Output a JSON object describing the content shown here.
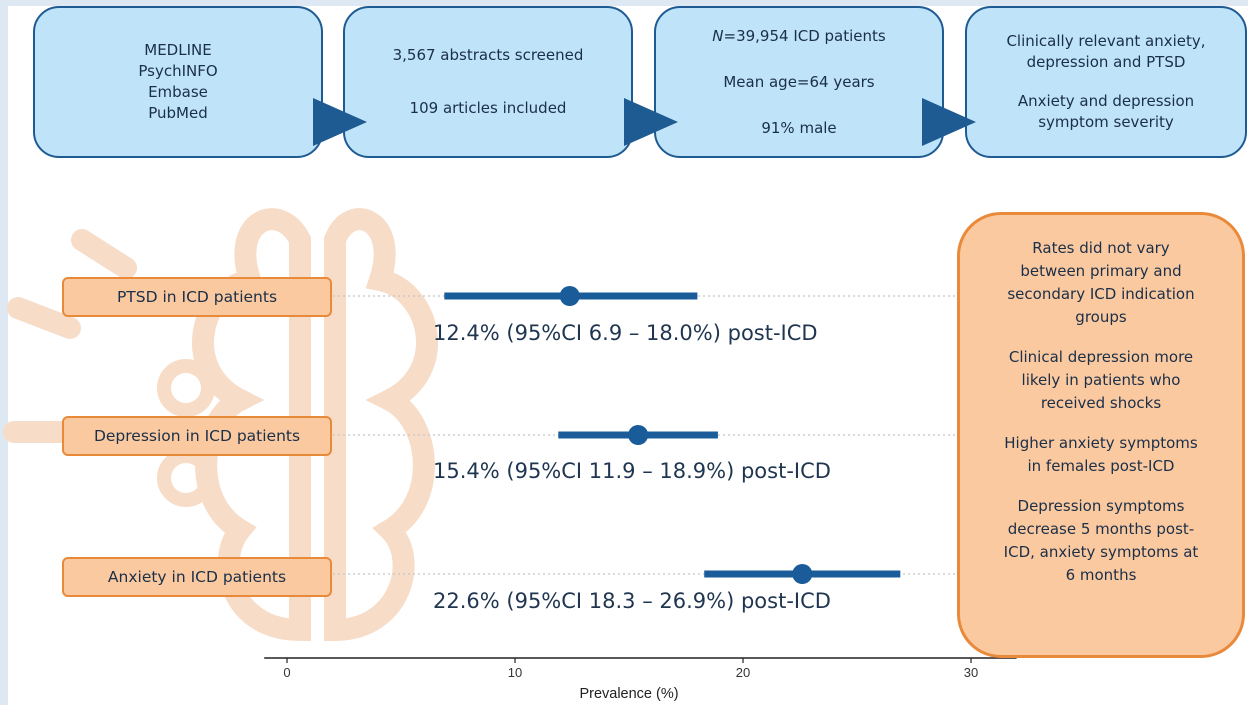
{
  "flow": {
    "box1": {
      "lines": [
        "MEDLINE",
        "PsychINFO",
        "Embase",
        "PubMed"
      ]
    },
    "box2": {
      "line1": "3,567 abstracts screened",
      "line2": "109 articles included"
    },
    "box3": {
      "n_italic": "N",
      "n_rest": "=39,954 ICD patients",
      "mean_age": "Mean age=64 years",
      "male": "91% male"
    },
    "box4": {
      "line1": "Clinically relevant anxiety,",
      "line2": "depression and PTSD",
      "line3": "Anxiety and depression",
      "line4": "symptom severity"
    }
  },
  "notes": [
    [
      "Rates did not vary",
      "between primary and",
      "secondary ICD indication",
      "groups"
    ],
    [
      "Clinical depression more",
      "likely in patients who",
      "received shocks"
    ],
    [
      "Higher anxiety symptoms",
      "in females post-ICD"
    ],
    [
      "Depression symptoms",
      "decrease 5 months post-",
      "ICD, anxiety symptoms at",
      "6 months"
    ]
  ],
  "colors": {
    "estimate": "#1a5b99",
    "label_fill": "#fbc9a0",
    "label_border": "#e98a3a",
    "box_fill": "#bfe3f8",
    "box_border": "#1f5b93"
  },
  "icons": [
    "brain-outline-icon",
    "gear-icon",
    "light-rays-icon"
  ],
  "chart_data": {
    "type": "forest",
    "xlabel": "Prevalence (%)",
    "xlim": [
      -1,
      32
    ],
    "xticks": [
      0,
      10,
      20,
      30
    ],
    "rows": [
      {
        "label": "PTSD in ICD patients",
        "estimate": 12.4,
        "ci_low": 6.9,
        "ci_high": 18.0,
        "text": "12.4% (95%CI 6.9 – 18.0%) post-ICD"
      },
      {
        "label": "Depression in ICD patients",
        "estimate": 15.4,
        "ci_low": 11.9,
        "ci_high": 18.9,
        "text": "15.4% (95%CI 11.9 – 18.9%) post-ICD"
      },
      {
        "label": "Anxiety in ICD patients",
        "estimate": 22.6,
        "ci_low": 18.3,
        "ci_high": 26.9,
        "text": "22.6% (95%CI 18.3 – 26.9%) post-ICD"
      }
    ]
  }
}
